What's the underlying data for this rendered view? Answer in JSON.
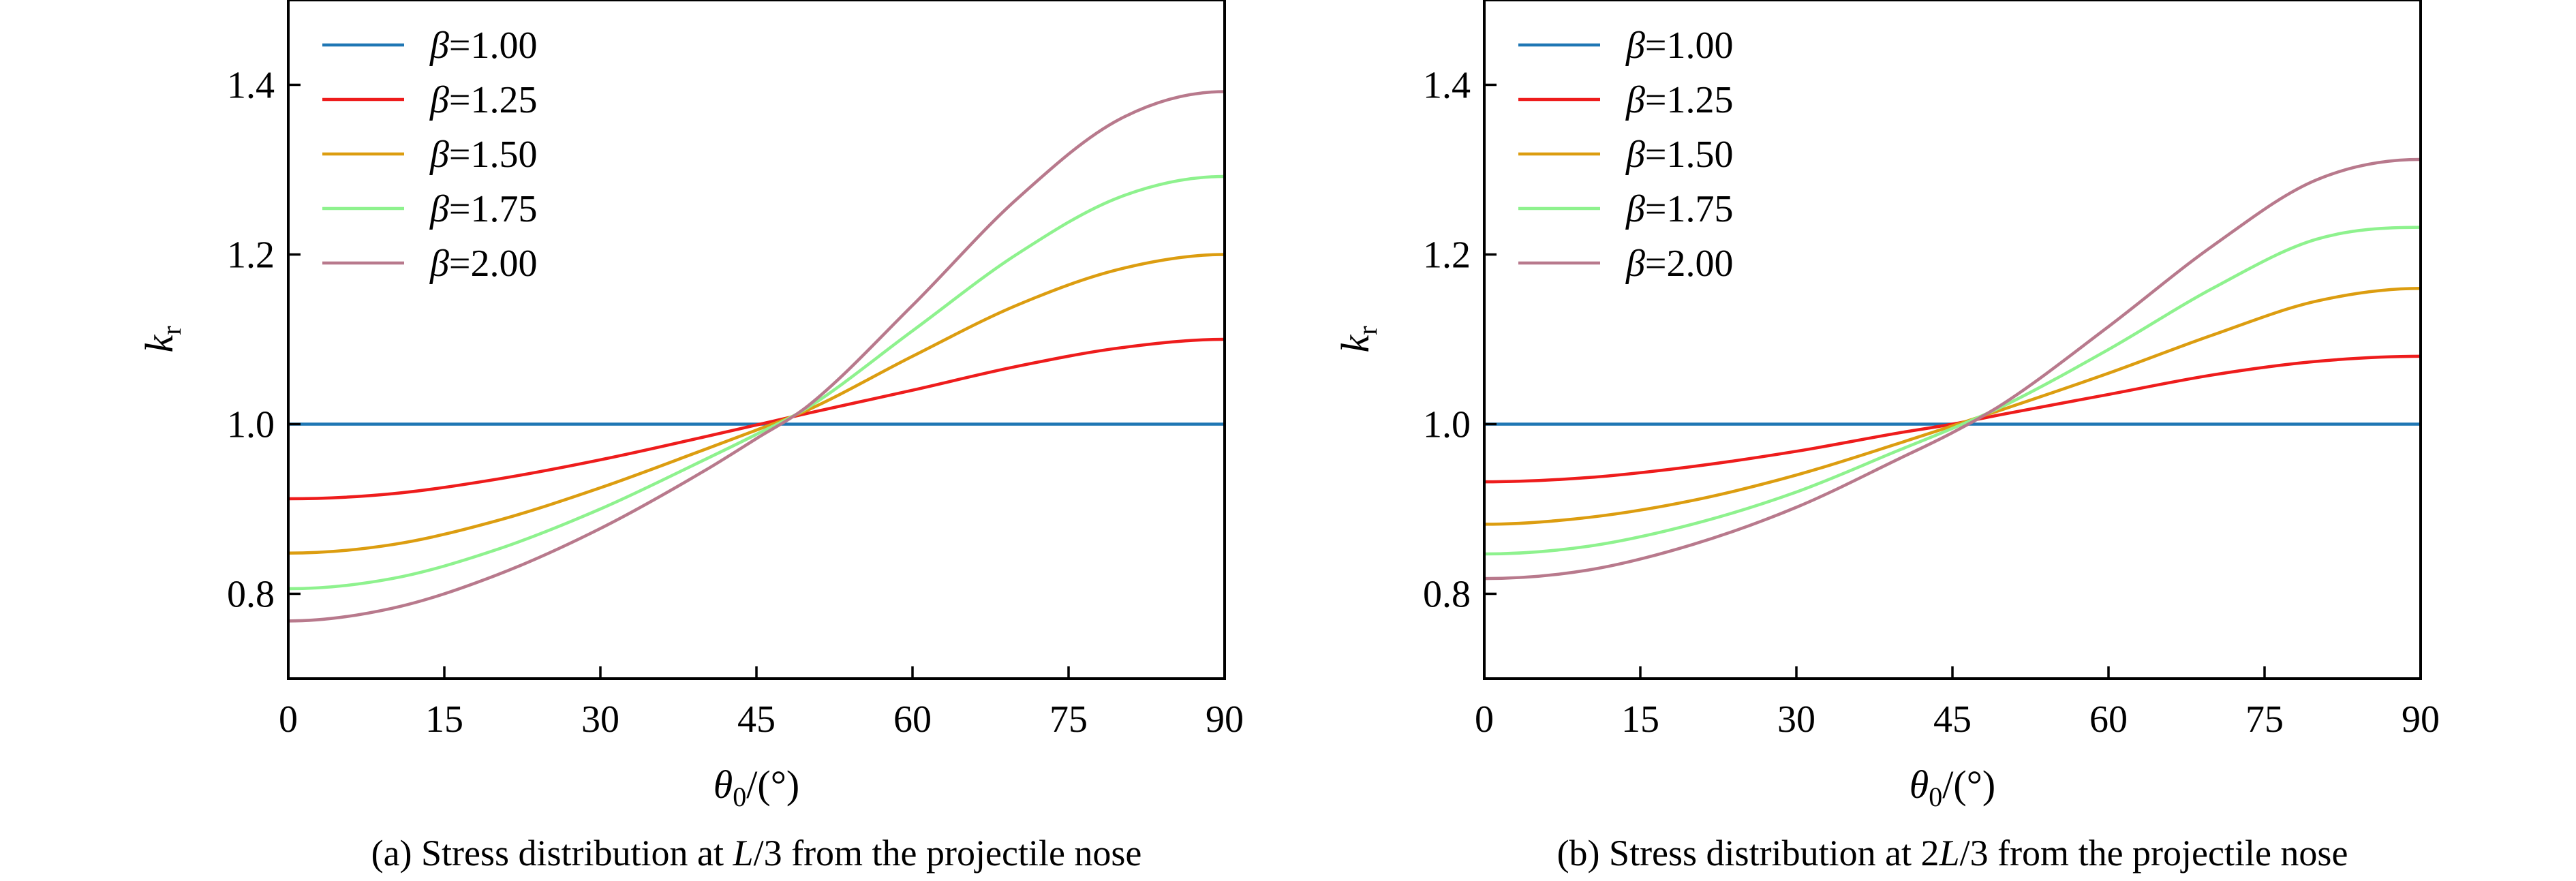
{
  "figure": {
    "captions": [
      "(a) Stress distribution at L/3 from the projectile nose",
      "(b) Stress distribution at 2L/3 from the projectile nose"
    ]
  },
  "chart_data": [
    {
      "type": "line",
      "title": "",
      "caption_parts": [
        "(a) Stress distribution at ",
        "L",
        "/3 from the projectile nose"
      ],
      "xlabel": {
        "symbol": "θ",
        "subscript": "0",
        "suffix": "/(°)"
      },
      "ylabel": {
        "symbol": "k",
        "subscript": "r"
      },
      "xlim": [
        0,
        90
      ],
      "ylim": [
        0.7,
        1.5
      ],
      "xticks": [
        0,
        15,
        30,
        45,
        60,
        75,
        90
      ],
      "yticks": [
        0.8,
        1.0,
        1.2,
        1.4
      ],
      "ytick_labels": [
        "0.8",
        "1.0",
        "1.2",
        "1.4"
      ],
      "grid": false,
      "legend_position": "top-left",
      "x": [
        0,
        10,
        20,
        30,
        40,
        45,
        50,
        60,
        70,
        80,
        90
      ],
      "series": [
        {
          "name": "1.00",
          "label_symbol": "β",
          "color": "#1f77b4",
          "values": [
            1.0,
            1.0,
            1.0,
            1.0,
            1.0,
            1.0,
            1.0,
            1.0,
            1.0,
            1.0,
            1.0
          ]
        },
        {
          "name": "1.25",
          "label_symbol": "β",
          "color": "#ee1c1c",
          "values": [
            0.912,
            0.918,
            0.935,
            0.958,
            0.985,
            0.999,
            1.013,
            1.04,
            1.068,
            1.09,
            1.1
          ]
        },
        {
          "name": "1.50",
          "label_symbol": "β",
          "color": "#dc9d10",
          "values": [
            0.848,
            0.858,
            0.886,
            0.925,
            0.97,
            0.993,
            1.017,
            1.08,
            1.14,
            1.183,
            1.2
          ]
        },
        {
          "name": "1.75",
          "label_symbol": "β",
          "color": "#8ef28e",
          "values": [
            0.806,
            0.818,
            0.852,
            0.9,
            0.958,
            0.988,
            1.02,
            1.11,
            1.2,
            1.268,
            1.292
          ]
        },
        {
          "name": "2.00",
          "label_symbol": "β",
          "color": "#b8798c",
          "values": [
            0.768,
            0.783,
            0.822,
            0.877,
            0.945,
            0.983,
            1.022,
            1.14,
            1.265,
            1.36,
            1.392
          ]
        }
      ]
    },
    {
      "type": "line",
      "title": "",
      "caption_parts": [
        "(b) Stress distribution at 2",
        "L",
        "/3 from the projectile nose"
      ],
      "xlabel": {
        "symbol": "θ",
        "subscript": "0",
        "suffix": "/(°)"
      },
      "ylabel": {
        "symbol": "k",
        "subscript": "r"
      },
      "xlim": [
        0,
        90
      ],
      "ylim": [
        0.7,
        1.5
      ],
      "xticks": [
        0,
        15,
        30,
        45,
        60,
        75,
        90
      ],
      "yticks": [
        0.8,
        1.0,
        1.2,
        1.4
      ],
      "ytick_labels": [
        "0.8",
        "1.0",
        "1.2",
        "1.4"
      ],
      "grid": false,
      "legend_position": "top-left",
      "x": [
        0,
        10,
        20,
        30,
        40,
        45,
        50,
        60,
        70,
        80,
        90
      ],
      "series": [
        {
          "name": "1.00",
          "label_symbol": "β",
          "color": "#1f77b4",
          "values": [
            1.0,
            1.0,
            1.0,
            1.0,
            1.0,
            1.0,
            1.0,
            1.0,
            1.0,
            1.0,
            1.0
          ]
        },
        {
          "name": "1.25",
          "label_symbol": "β",
          "color": "#ee1c1c",
          "values": [
            0.932,
            0.937,
            0.95,
            0.968,
            0.99,
            1.0,
            1.012,
            1.035,
            1.058,
            1.074,
            1.08
          ]
        },
        {
          "name": "1.50",
          "label_symbol": "β",
          "color": "#dc9d10",
          "values": [
            0.882,
            0.89,
            0.91,
            0.94,
            0.978,
            0.998,
            1.018,
            1.06,
            1.105,
            1.145,
            1.16
          ]
        },
        {
          "name": "1.75",
          "label_symbol": "β",
          "color": "#8ef28e",
          "values": [
            0.847,
            0.856,
            0.882,
            0.92,
            0.97,
            0.995,
            1.022,
            1.088,
            1.16,
            1.218,
            1.232
          ]
        },
        {
          "name": "2.00",
          "label_symbol": "β",
          "color": "#b8798c",
          "values": [
            0.818,
            0.828,
            0.858,
            0.902,
            0.96,
            0.99,
            1.025,
            1.115,
            1.21,
            1.288,
            1.312
          ]
        }
      ]
    }
  ]
}
